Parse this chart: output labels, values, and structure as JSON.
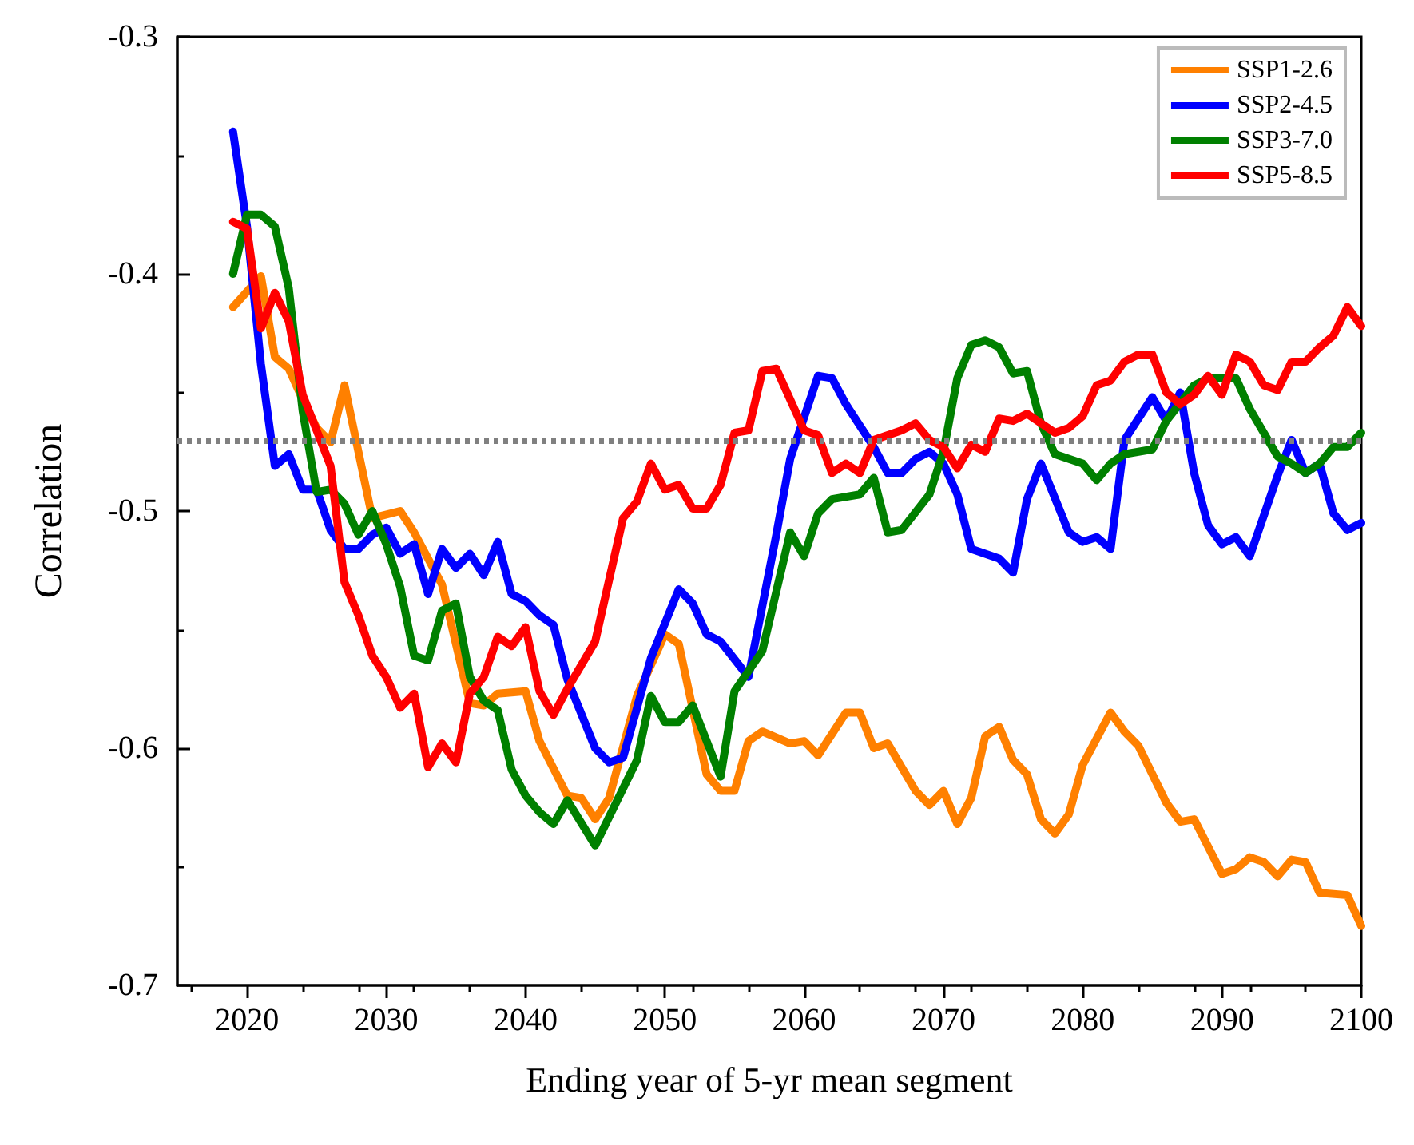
{
  "chart_data": {
    "type": "line",
    "xlabel": "Ending year of 5-yr mean segment",
    "ylabel": "Correlation",
    "xlim": [
      2015,
      2100
    ],
    "xticks": [
      2020,
      2030,
      2040,
      2050,
      2060,
      2070,
      2080,
      2090,
      2100
    ],
    "ylim": [
      -0.7,
      -0.3
    ],
    "yticks": [
      -0.7,
      -0.6,
      -0.5,
      -0.4,
      -0.3
    ],
    "grid": false,
    "legend": "top right",
    "marker": "none",
    "line_style": "solid",
    "ref_lines": [
      {
        "axis": "y",
        "value": -0.47,
        "color": "#808080",
        "line_style": "dotted"
      }
    ],
    "series": [
      {
        "name": "SSP1-2.6",
        "color": "#ff8000",
        "x": [
          2019,
          2021,
          2022,
          2023,
          2024,
          2025,
          2026,
          2027,
          2028,
          2029,
          2031,
          2032,
          2034,
          2036,
          2037,
          2038,
          2040,
          2041,
          2043,
          2044,
          2045,
          2046,
          2048,
          2050,
          2051,
          2053,
          2054,
          2055,
          2056,
          2057,
          2059,
          2060,
          2061,
          2063,
          2064,
          2065,
          2066,
          2068,
          2069,
          2070,
          2071,
          2072,
          2073,
          2074,
          2075,
          2076,
          2077,
          2078,
          2079,
          2080,
          2082,
          2083,
          2084,
          2086,
          2087,
          2088,
          2090,
          2091,
          2092,
          2093,
          2094,
          2095,
          2096,
          2097,
          2099,
          2100
        ],
        "values": [
          -0.414,
          -0.401,
          -0.435,
          -0.44,
          -0.453,
          -0.465,
          -0.471,
          -0.447,
          -0.475,
          -0.503,
          -0.5,
          -0.509,
          -0.531,
          -0.581,
          -0.582,
          -0.577,
          -0.576,
          -0.597,
          -0.62,
          -0.621,
          -0.63,
          -0.621,
          -0.578,
          -0.552,
          -0.556,
          -0.611,
          -0.618,
          -0.618,
          -0.597,
          -0.593,
          -0.598,
          -0.597,
          -0.603,
          -0.585,
          -0.585,
          -0.6,
          -0.598,
          -0.618,
          -0.624,
          -0.618,
          -0.632,
          -0.621,
          -0.595,
          -0.591,
          -0.605,
          -0.611,
          -0.63,
          -0.636,
          -0.628,
          -0.607,
          -0.585,
          -0.593,
          -0.599,
          -0.623,
          -0.631,
          -0.63,
          -0.653,
          -0.651,
          -0.646,
          -0.648,
          -0.654,
          -0.647,
          -0.648,
          -0.661,
          -0.662,
          -0.675
        ]
      },
      {
        "name": "SSP2-4.5",
        "color": "#0000ff",
        "x": [
          2019,
          2020,
          2021,
          2022,
          2023,
          2024,
          2025,
          2026,
          2027,
          2028,
          2029,
          2030,
          2031,
          2032,
          2033,
          2034,
          2035,
          2036,
          2037,
          2038,
          2039,
          2040,
          2041,
          2042,
          2043,
          2045,
          2046,
          2047,
          2049,
          2051,
          2052,
          2053,
          2054,
          2056,
          2058,
          2059,
          2061,
          2062,
          2063,
          2065,
          2066,
          2067,
          2068,
          2069,
          2070,
          2071,
          2072,
          2074,
          2075,
          2076,
          2077,
          2079,
          2080,
          2081,
          2082,
          2083,
          2085,
          2086,
          2087,
          2088,
          2089,
          2090,
          2091,
          2092,
          2094,
          2095,
          2096,
          2097,
          2098,
          2099,
          2100
        ],
        "values": [
          -0.34,
          -0.38,
          -0.438,
          -0.481,
          -0.476,
          -0.491,
          -0.491,
          -0.508,
          -0.516,
          -0.516,
          -0.51,
          -0.507,
          -0.518,
          -0.514,
          -0.535,
          -0.516,
          -0.524,
          -0.518,
          -0.527,
          -0.513,
          -0.535,
          -0.538,
          -0.544,
          -0.548,
          -0.571,
          -0.6,
          -0.606,
          -0.604,
          -0.562,
          -0.533,
          -0.539,
          -0.552,
          -0.555,
          -0.57,
          -0.51,
          -0.478,
          -0.443,
          -0.444,
          -0.455,
          -0.473,
          -0.484,
          -0.484,
          -0.478,
          -0.475,
          -0.48,
          -0.493,
          -0.516,
          -0.52,
          -0.526,
          -0.495,
          -0.48,
          -0.509,
          -0.513,
          -0.511,
          -0.516,
          -0.47,
          -0.452,
          -0.462,
          -0.45,
          -0.484,
          -0.506,
          -0.514,
          -0.511,
          -0.519,
          -0.485,
          -0.47,
          -0.484,
          -0.48,
          -0.501,
          -0.508,
          -0.505
        ]
      },
      {
        "name": "SSP3-7.0",
        "color": "#008000",
        "x": [
          2019,
          2020,
          2021,
          2022,
          2023,
          2024,
          2025,
          2026,
          2027,
          2028,
          2029,
          2030,
          2031,
          2032,
          2033,
          2034,
          2035,
          2036,
          2037,
          2038,
          2039,
          2040,
          2041,
          2042,
          2043,
          2045,
          2048,
          2049,
          2050,
          2051,
          2052,
          2054,
          2055,
          2057,
          2059,
          2060,
          2061,
          2062,
          2064,
          2065,
          2066,
          2067,
          2069,
          2070,
          2071,
          2072,
          2073,
          2074,
          2075,
          2076,
          2077,
          2078,
          2080,
          2081,
          2082,
          2083,
          2085,
          2086,
          2088,
          2089,
          2091,
          2092,
          2093,
          2094,
          2095,
          2096,
          2097,
          2098,
          2099,
          2100
        ],
        "values": [
          -0.4,
          -0.375,
          -0.375,
          -0.38,
          -0.406,
          -0.458,
          -0.492,
          -0.491,
          -0.497,
          -0.51,
          -0.5,
          -0.514,
          -0.532,
          -0.561,
          -0.563,
          -0.542,
          -0.539,
          -0.57,
          -0.58,
          -0.584,
          -0.609,
          -0.62,
          -0.627,
          -0.632,
          -0.622,
          -0.641,
          -0.605,
          -0.578,
          -0.589,
          -0.589,
          -0.582,
          -0.612,
          -0.576,
          -0.559,
          -0.509,
          -0.519,
          -0.501,
          -0.495,
          -0.493,
          -0.486,
          -0.509,
          -0.508,
          -0.493,
          -0.475,
          -0.444,
          -0.43,
          -0.428,
          -0.431,
          -0.442,
          -0.441,
          -0.463,
          -0.476,
          -0.48,
          -0.487,
          -0.48,
          -0.476,
          -0.474,
          -0.462,
          -0.447,
          -0.444,
          -0.444,
          -0.457,
          -0.467,
          -0.477,
          -0.48,
          -0.484,
          -0.48,
          -0.473,
          -0.473,
          -0.467
        ]
      },
      {
        "name": "SSP5-8.5",
        "color": "#ff0000",
        "x": [
          2019,
          2020,
          2021,
          2022,
          2023,
          2024,
          2025,
          2026,
          2027,
          2028,
          2029,
          2030,
          2031,
          2032,
          2033,
          2034,
          2035,
          2036,
          2037,
          2038,
          2039,
          2040,
          2041,
          2042,
          2043,
          2045,
          2047,
          2048,
          2049,
          2050,
          2051,
          2052,
          2053,
          2054,
          2055,
          2056,
          2057,
          2058,
          2060,
          2061,
          2062,
          2063,
          2064,
          2065,
          2067,
          2068,
          2069,
          2070,
          2071,
          2072,
          2073,
          2074,
          2075,
          2076,
          2078,
          2079,
          2080,
          2081,
          2082,
          2083,
          2084,
          2085,
          2086,
          2087,
          2088,
          2089,
          2090,
          2091,
          2092,
          2093,
          2094,
          2095,
          2096,
          2097,
          2098,
          2099,
          2100
        ],
        "values": [
          -0.378,
          -0.381,
          -0.423,
          -0.408,
          -0.42,
          -0.451,
          -0.466,
          -0.481,
          -0.53,
          -0.544,
          -0.561,
          -0.57,
          -0.583,
          -0.577,
          -0.608,
          -0.598,
          -0.606,
          -0.577,
          -0.57,
          -0.553,
          -0.557,
          -0.549,
          -0.576,
          -0.586,
          -0.575,
          -0.555,
          -0.503,
          -0.496,
          -0.48,
          -0.491,
          -0.489,
          -0.499,
          -0.499,
          -0.489,
          -0.467,
          -0.466,
          -0.441,
          -0.44,
          -0.466,
          -0.468,
          -0.484,
          -0.48,
          -0.484,
          -0.47,
          -0.466,
          -0.463,
          -0.47,
          -0.473,
          -0.482,
          -0.472,
          -0.475,
          -0.461,
          -0.462,
          -0.459,
          -0.467,
          -0.465,
          -0.46,
          -0.447,
          -0.445,
          -0.437,
          -0.434,
          -0.434,
          -0.45,
          -0.455,
          -0.451,
          -0.443,
          -0.451,
          -0.434,
          -0.437,
          -0.447,
          -0.449,
          -0.437,
          -0.437,
          -0.431,
          -0.426,
          -0.414,
          -0.422
        ]
      }
    ]
  }
}
